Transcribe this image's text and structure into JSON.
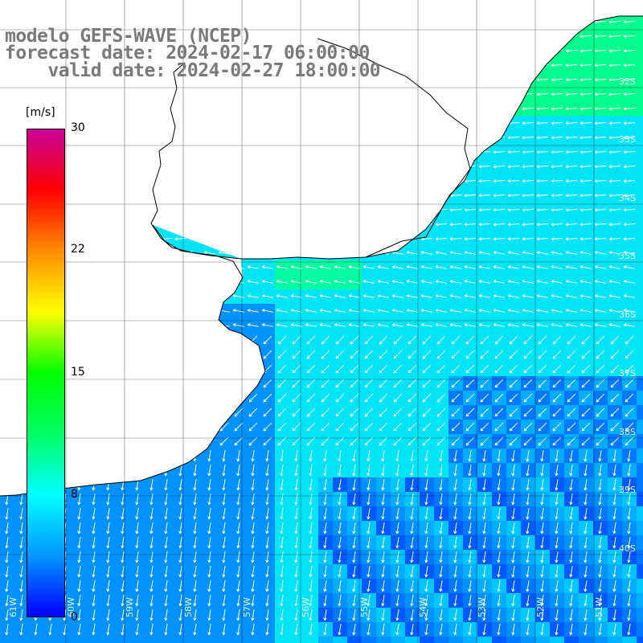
{
  "title": {
    "line1": "modelo GEFS-WAVE (NCEP)",
    "line2": "forecast date: 2024-02-17 06:00:00",
    "line3": "    valid date: 2024-02-27 18:00:00"
  },
  "colorbar": {
    "unit": "[m/s]",
    "min": 0,
    "max": 30,
    "tick_labels": [
      "30",
      "22",
      "15",
      "8",
      "0"
    ],
    "tick_values": [
      30,
      22,
      15,
      8,
      0
    ],
    "colors": [
      "#0000ff",
      "#0096ff",
      "#00ffff",
      "#00ff64",
      "#00ff00",
      "#ffff00",
      "#ff8c00",
      "#ff0000",
      "#c80096"
    ]
  },
  "map": {
    "latitude_labels": [
      "32S",
      "33S",
      "34S",
      "35S",
      "36S",
      "37S",
      "38S",
      "39S",
      "40S"
    ],
    "longitude_labels": [
      "61W",
      "60W",
      "59W",
      "58W",
      "57W",
      "56W",
      "55W",
      "54W",
      "53W",
      "52W",
      "51W"
    ],
    "grid_color": "#000000",
    "land_color": "#ffffff",
    "vector_color": "#ffffff"
  }
}
